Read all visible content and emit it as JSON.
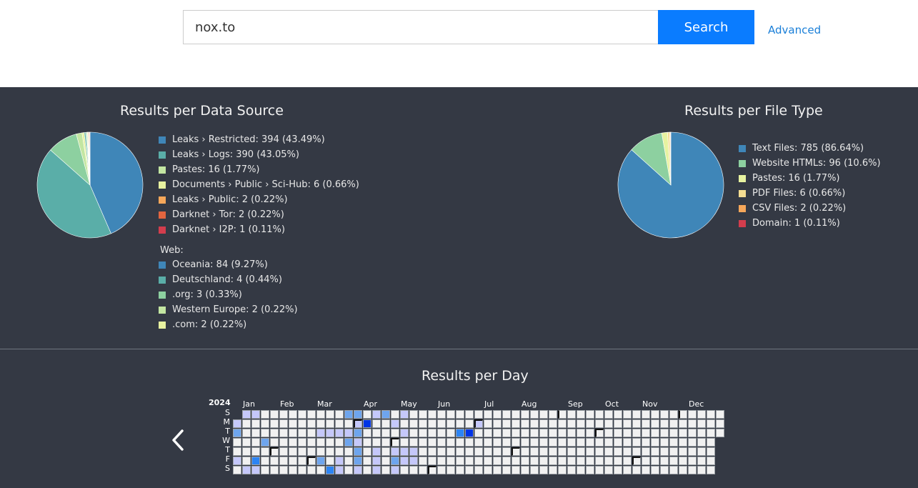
{
  "search": {
    "value": "nox.to",
    "button_label": "Search",
    "advanced_label": "Advanced"
  },
  "colors": {
    "panel_bg": "#343944",
    "accent": "#0a7cff",
    "palette": [
      "#3f86b8",
      "#5aaea8",
      "#8dd0a0",
      "#c3e6a2",
      "#e7f2a0",
      "#f4dd92",
      "#f6a75a",
      "#e2653f",
      "#d33d4d"
    ]
  },
  "data_source_chart": {
    "title": "Results per Data Source",
    "chart_data": {
      "type": "pie",
      "slices": [
        {
          "label": "Leaks › Restricted",
          "value": 394,
          "percent": 43.49,
          "color": "#3f86b8"
        },
        {
          "label": "Leaks › Logs",
          "value": 390,
          "percent": 43.05,
          "color": "#5aaea8"
        },
        {
          "label": "Oceania",
          "value": 84,
          "percent": 9.27,
          "color": "#8dd0a0"
        },
        {
          "label": "Pastes",
          "value": 16,
          "percent": 1.77,
          "color": "#c3e6a2"
        },
        {
          "label": "Documents › Public › Sci-Hub",
          "value": 6,
          "percent": 0.66,
          "color": "#e7f2a0"
        },
        {
          "label": "Deutschland",
          "value": 4,
          "percent": 0.44,
          "color": "#5aaea8"
        },
        {
          "label": ".org",
          "value": 3,
          "percent": 0.33,
          "color": "#8dd0a0"
        },
        {
          "label": "Western Europe",
          "value": 2,
          "percent": 0.22,
          "color": "#c3e6a2"
        },
        {
          "label": ".com",
          "value": 2,
          "percent": 0.22,
          "color": "#e7f2a0"
        },
        {
          "label": "Leaks › Public",
          "value": 2,
          "percent": 0.22,
          "color": "#f6a75a"
        },
        {
          "label": "Darknet › Tor",
          "value": 2,
          "percent": 0.22,
          "color": "#e2653f"
        },
        {
          "label": "Darknet › I2P",
          "value": 1,
          "percent": 0.11,
          "color": "#d33d4d"
        }
      ]
    },
    "legend": [
      {
        "text": "Leaks › Restricted: 394 (43.49%)",
        "color": "#3f86b8"
      },
      {
        "text": "Leaks › Logs: 390 (43.05%)",
        "color": "#5aaea8"
      },
      {
        "text": "Pastes: 16 (1.77%)",
        "color": "#c3e6a2"
      },
      {
        "text": "Documents › Public › Sci-Hub: 6 (0.66%)",
        "color": "#e7f2a0"
      },
      {
        "text": "Leaks › Public: 2 (0.22%)",
        "color": "#f6a75a"
      },
      {
        "text": "Darknet › Tor: 2 (0.22%)",
        "color": "#e2653f"
      },
      {
        "text": "Darknet › I2P: 1 (0.11%)",
        "color": "#d33d4d"
      }
    ],
    "web_group_label": "Web:",
    "web_legend": [
      {
        "text": "Oceania: 84 (9.27%)",
        "color": "#3f86b8"
      },
      {
        "text": "Deutschland: 4 (0.44%)",
        "color": "#5aaea8"
      },
      {
        "text": ".org: 3 (0.33%)",
        "color": "#8dd0a0"
      },
      {
        "text": "Western Europe: 2 (0.22%)",
        "color": "#c3e6a2"
      },
      {
        "text": ".com: 2 (0.22%)",
        "color": "#e7f2a0"
      }
    ]
  },
  "file_type_chart": {
    "title": "Results per File Type",
    "chart_data": {
      "type": "pie",
      "slices": [
        {
          "label": "Text Files",
          "value": 785,
          "percent": 86.64,
          "color": "#3f86b8"
        },
        {
          "label": "Website HTMLs",
          "value": 96,
          "percent": 10.6,
          "color": "#8dd0a0"
        },
        {
          "label": "Pastes",
          "value": 16,
          "percent": 1.77,
          "color": "#e7f2a0"
        },
        {
          "label": "PDF Files",
          "value": 6,
          "percent": 0.66,
          "color": "#f4dd92"
        },
        {
          "label": "CSV Files",
          "value": 2,
          "percent": 0.22,
          "color": "#f6a75a"
        },
        {
          "label": "Domain",
          "value": 1,
          "percent": 0.11,
          "color": "#d33d4d"
        }
      ]
    },
    "legend": [
      {
        "text": "Text Files: 785 (86.64%)",
        "color": "#3f86b8"
      },
      {
        "text": "Website HTMLs: 96 (10.6%)",
        "color": "#8dd0a0"
      },
      {
        "text": "Pastes: 16 (1.77%)",
        "color": "#e7f2a0"
      },
      {
        "text": "PDF Files: 6 (0.66%)",
        "color": "#f4dd92"
      },
      {
        "text": "CSV Files: 2 (0.22%)",
        "color": "#f6a75a"
      },
      {
        "text": "Domain: 1 (0.11%)",
        "color": "#d33d4d"
      }
    ]
  },
  "calendar": {
    "title": "Results per Day",
    "year": "2024",
    "months": [
      "Jan",
      "Feb",
      "Mar",
      "Apr",
      "May",
      "Jun",
      "Jul",
      "Aug",
      "Sep",
      "Oct",
      "Nov",
      "Dec"
    ],
    "day_labels": [
      "S",
      "M",
      "T",
      "W",
      "T",
      "F",
      "S"
    ],
    "chart_data": {
      "type": "heatmap",
      "levels": [
        "none",
        "low",
        "medium",
        "high",
        "max"
      ],
      "level_colors": [
        "#f1f1f1",
        "#c5c8fa",
        "#6ea5ee",
        "#2c84f4",
        "#0034e6"
      ],
      "active_days": [
        {
          "date": "2024-01-01",
          "level": 1
        },
        {
          "date": "2024-01-02",
          "level": 2
        },
        {
          "date": "2024-01-05",
          "level": 1
        },
        {
          "date": "2024-01-07",
          "level": 1
        },
        {
          "date": "2024-01-13",
          "level": 1
        },
        {
          "date": "2024-01-14",
          "level": 1
        },
        {
          "date": "2024-01-19",
          "level": 3
        },
        {
          "date": "2024-01-20",
          "level": 1
        },
        {
          "date": "2024-01-24",
          "level": 2
        },
        {
          "date": "2024-03-05",
          "level": 1
        },
        {
          "date": "2024-03-08",
          "level": 2
        },
        {
          "date": "2024-03-12",
          "level": 1
        },
        {
          "date": "2024-03-16",
          "level": 3
        },
        {
          "date": "2024-03-19",
          "level": 1
        },
        {
          "date": "2024-03-22",
          "level": 1
        },
        {
          "date": "2024-03-23",
          "level": 1
        },
        {
          "date": "2024-03-24",
          "level": 2
        },
        {
          "date": "2024-03-26",
          "level": 1
        },
        {
          "date": "2024-03-27",
          "level": 2
        },
        {
          "date": "2024-03-31",
          "level": 2
        },
        {
          "date": "2024-04-01",
          "level": 1
        },
        {
          "date": "2024-04-02",
          "level": 2
        },
        {
          "date": "2024-04-03",
          "level": 1
        },
        {
          "date": "2024-04-04",
          "level": 2
        },
        {
          "date": "2024-04-05",
          "level": 2
        },
        {
          "date": "2024-04-06",
          "level": 1
        },
        {
          "date": "2024-04-08",
          "level": 4
        },
        {
          "date": "2024-04-14",
          "level": 1
        },
        {
          "date": "2024-04-18",
          "level": 1
        },
        {
          "date": "2024-04-19",
          "level": 1
        },
        {
          "date": "2024-04-20",
          "level": 1
        },
        {
          "date": "2024-04-21",
          "level": 2
        },
        {
          "date": "2024-04-29",
          "level": 1
        },
        {
          "date": "2024-05-02",
          "level": 1
        },
        {
          "date": "2024-05-03",
          "level": 2
        },
        {
          "date": "2024-05-04",
          "level": 1
        },
        {
          "date": "2024-05-05",
          "level": 1
        },
        {
          "date": "2024-05-07",
          "level": 1
        },
        {
          "date": "2024-05-09",
          "level": 1
        },
        {
          "date": "2024-05-10",
          "level": 1
        },
        {
          "date": "2024-05-16",
          "level": 1
        },
        {
          "date": "2024-05-17",
          "level": 1
        },
        {
          "date": "2024-06-18",
          "level": 3
        },
        {
          "date": "2024-06-25",
          "level": 4
        },
        {
          "date": "2024-07-01",
          "level": 1
        }
      ]
    }
  }
}
